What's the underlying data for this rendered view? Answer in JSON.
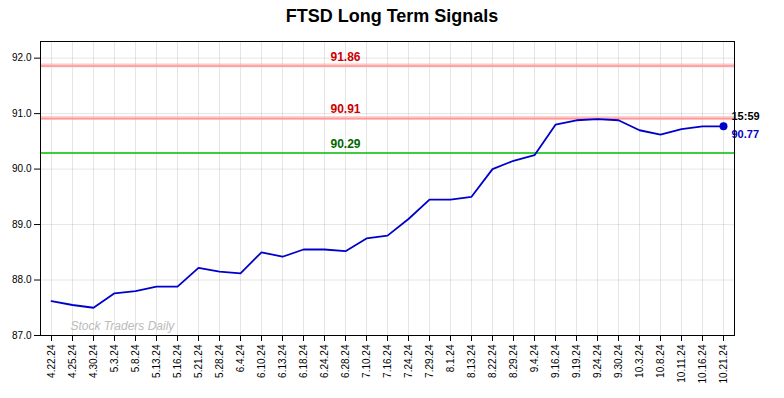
{
  "chart_data": {
    "type": "line",
    "title": "FTSD Long Term Signals",
    "categories": [
      "4.22.24",
      "4.25.24",
      "4.30.24",
      "5.3.24",
      "5.8.24",
      "5.13.24",
      "5.16.24",
      "5.21.24",
      "5.28.24",
      "6.4.24",
      "6.10.24",
      "6.13.24",
      "6.18.24",
      "6.24.24",
      "6.28.24",
      "7.10.24",
      "7.16.24",
      "7.24.24",
      "7.29.24",
      "8.1.24",
      "8.13.24",
      "8.22.24",
      "8.29.24",
      "9.4.24",
      "9.16.24",
      "9.19.24",
      "9.24.24",
      "9.30.24",
      "10.3.24",
      "10.8.24",
      "10.11.24",
      "10.16.24",
      "10.21.24"
    ],
    "values": [
      87.62,
      87.55,
      87.5,
      87.76,
      87.8,
      87.88,
      87.88,
      88.22,
      88.15,
      88.12,
      88.5,
      88.42,
      88.55,
      88.55,
      88.52,
      88.75,
      88.8,
      89.1,
      89.45,
      89.45,
      89.5,
      90.0,
      90.15,
      90.25,
      90.8,
      90.88,
      90.9,
      90.88,
      90.7,
      90.62,
      90.72,
      90.77,
      90.77
    ],
    "color": "#0000cc",
    "ylim": [
      87.0,
      92.3
    ],
    "yticks": [
      87,
      88,
      89,
      90,
      91,
      92
    ],
    "grid": true,
    "hlines": [
      {
        "value": 90.29,
        "color": "#00bb00"
      },
      {
        "value": 90.91,
        "color": "#ff9999"
      },
      {
        "value": 91.86,
        "color": "#ff9999"
      }
    ],
    "bands": [
      {
        "y1": 90.875,
        "y2": 90.945,
        "color": "#ffaaaa"
      },
      {
        "y1": 91.825,
        "y2": 91.895,
        "color": "#ffaaaa"
      }
    ],
    "annotations": [
      {
        "text": "91.86",
        "x": "6.28.24",
        "y": 91.86,
        "color": "#cc0000"
      },
      {
        "text": "90.91",
        "x": "6.28.24",
        "y": 90.91,
        "color": "#cc0000"
      },
      {
        "text": "90.29",
        "x": "6.28.24",
        "y": 90.29,
        "color": "#006600"
      },
      {
        "text": "15:59",
        "x": "10.21.24",
        "y": 90.77,
        "color": "#000000"
      },
      {
        "text": "90.77",
        "x": "10.21.24",
        "y": 90.77,
        "color": "#0000cc"
      }
    ],
    "watermark": {
      "text": "Stock Traders Daily",
      "color": "#bbbbbb"
    }
  }
}
